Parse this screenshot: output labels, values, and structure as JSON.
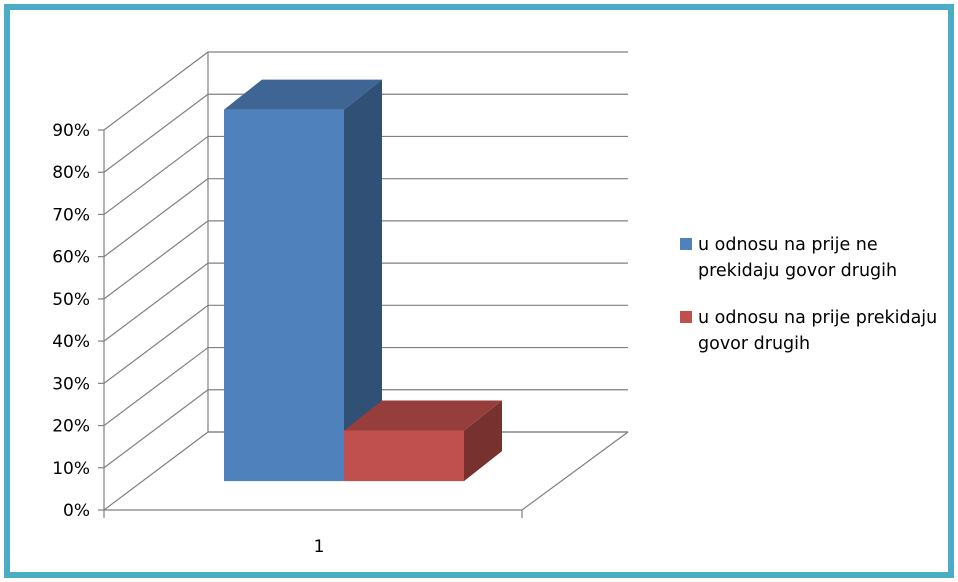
{
  "chart_data": {
    "type": "bar",
    "categories": [
      "1"
    ],
    "series": [
      {
        "name": "u odnosu na prije ne prekidaju govor drugih",
        "values": [
          88
        ],
        "color": "#4F81BD"
      },
      {
        "name": "u odnosu na prije prekidaju govor drugih",
        "values": [
          12
        ],
        "color": "#C0504D"
      }
    ],
    "ylim": [
      0,
      90
    ],
    "yticks": [
      "0%",
      "10%",
      "20%",
      "30%",
      "40%",
      "50%",
      "60%",
      "70%",
      "80%",
      "90%"
    ],
    "grid": true,
    "legend_position": "right",
    "frame_color": "#4BACC6"
  }
}
